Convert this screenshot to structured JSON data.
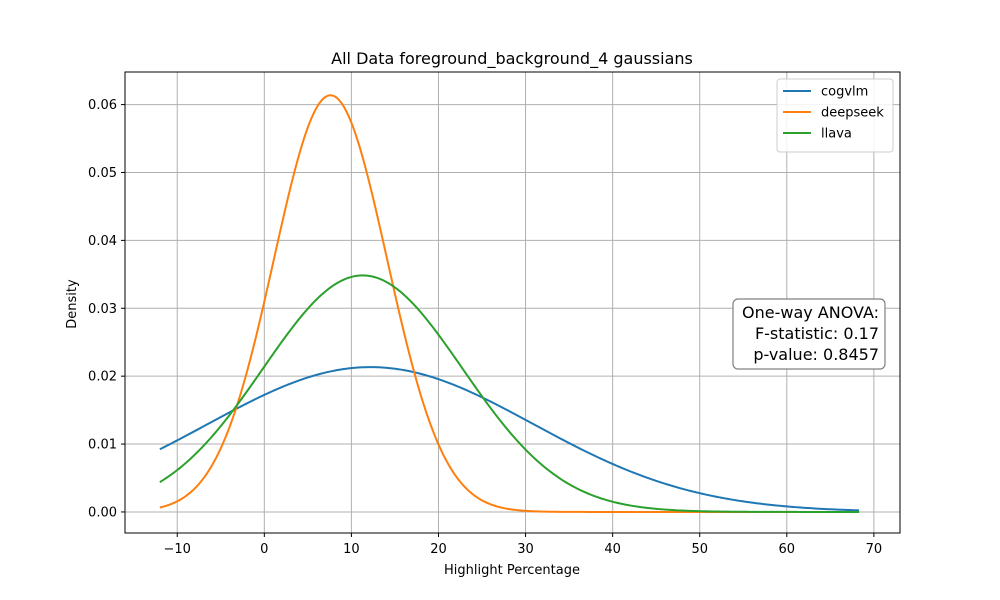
{
  "chart_data": {
    "type": "line",
    "title": "All Data foreground_background_4 gaussians",
    "xlabel": "Highlight Percentage",
    "ylabel": "Density",
    "xlim": [
      -16,
      73
    ],
    "ylim": [
      -0.0031,
      0.0648
    ],
    "xticks": [
      -10,
      0,
      10,
      20,
      30,
      40,
      50,
      60,
      70
    ],
    "xtick_labels": [
      "−10",
      "0",
      "10",
      "20",
      "30",
      "40",
      "50",
      "60",
      "70"
    ],
    "yticks": [
      0.0,
      0.01,
      0.02,
      0.03,
      0.04,
      0.05,
      0.06
    ],
    "ytick_labels": [
      "0.00",
      "0.01",
      "0.02",
      "0.03",
      "0.04",
      "0.05",
      "0.06"
    ],
    "grid": true,
    "legend_position": "top-right",
    "x_range": [
      -12,
      68.3
    ],
    "series": [
      {
        "name": "cogvlm",
        "color": "#1f77b4",
        "distribution": "normal",
        "mean": 12.2,
        "std": 18.7
      },
      {
        "name": "deepseek",
        "color": "#ff7f0e",
        "distribution": "normal",
        "mean": 7.6,
        "std": 6.5
      },
      {
        "name": "llava",
        "color": "#2ca02c",
        "distribution": "normal",
        "mean": 11.3,
        "std": 11.45
      }
    ],
    "annotation": {
      "lines": [
        "One-way ANOVA:",
        "F-statistic: 0.17",
        "p-value: 0.8457"
      ],
      "position": "right-middle"
    }
  }
}
